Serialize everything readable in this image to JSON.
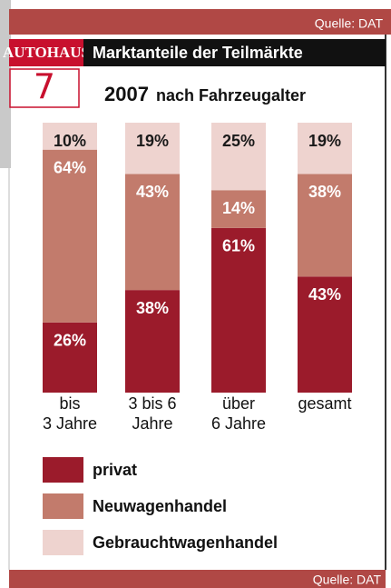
{
  "chart_data": {
    "type": "stacked_bar",
    "source_top": "Quelle: DAT",
    "source_bottom": "Quelle: DAT",
    "logo_brand": "AUTOHAUS",
    "logo_issue": "7",
    "title": "Marktanteile der Teilmärkte",
    "subtitle_year": "2007",
    "subtitle": "nach Fahrzeugalter",
    "categories": [
      "bis\n3 Jahre",
      "3 bis 6\nJahre",
      "über\n6 Jahre",
      "gesamt"
    ],
    "ylim": [
      0,
      100
    ],
    "series": [
      {
        "name": "privat",
        "color": "#9b1b2b",
        "label_color": "#ffffff",
        "values": [
          26,
          38,
          61,
          43
        ],
        "value_labels": [
          "26%",
          "38%",
          "61%",
          "43%"
        ]
      },
      {
        "name": "Neuwagenhandel",
        "color": "#c27b6c",
        "label_color": "#ffffff",
        "values": [
          64,
          43,
          14,
          38
        ],
        "value_labels": [
          "64%",
          "43%",
          "14%",
          "38%"
        ]
      },
      {
        "name": "Gebrauchtwagenhandel",
        "color": "#eed3cf",
        "label_color": "#1a1a1a",
        "values": [
          10,
          19,
          25,
          19
        ],
        "value_labels": [
          "10%",
          "19%",
          "25%",
          "19%"
        ]
      }
    ]
  }
}
